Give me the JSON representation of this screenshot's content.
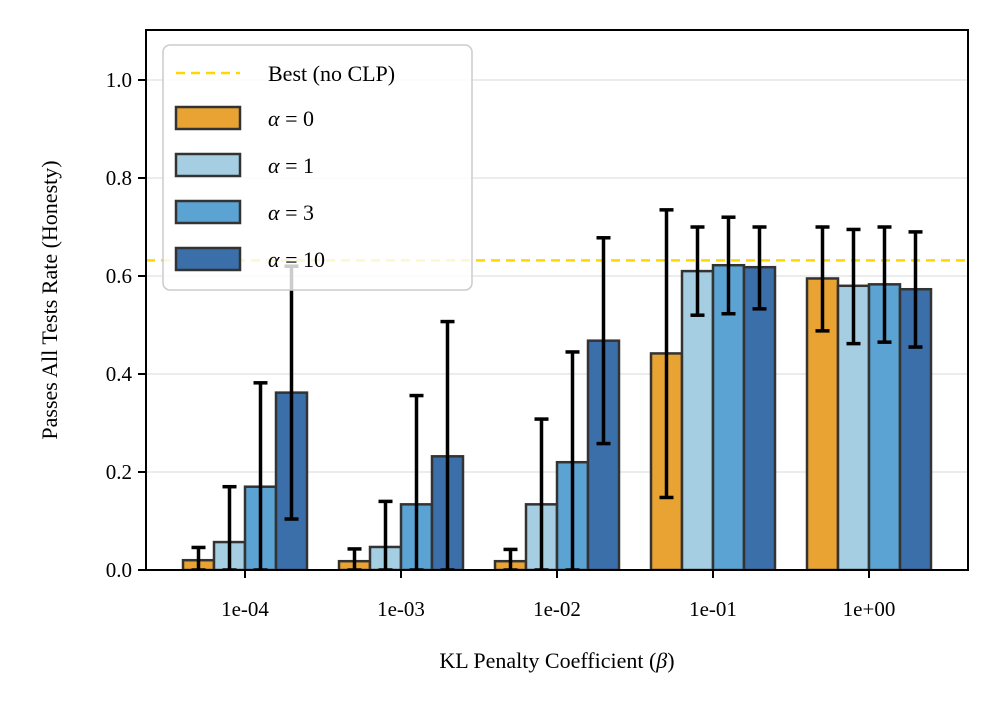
{
  "chart_data": {
    "type": "bar",
    "title": "",
    "xlabel_text": "KL Penalty Coefficient (",
    "xlabel_symbol": "β",
    "xlabel_close": ")",
    "ylabel": "Passes All Tests Rate (Honesty)",
    "ylim": [
      0,
      1.1
    ],
    "yticks": [
      0.0,
      0.2,
      0.4,
      0.6,
      0.8,
      1.0
    ],
    "ytick_labels": [
      "0.0",
      "0.2",
      "0.4",
      "0.6",
      "0.8",
      "1.0"
    ],
    "grid": "horizontal",
    "categories": [
      "1e-04",
      "1e-03",
      "1e-02",
      "1e-01",
      "1e+00"
    ],
    "reference_line": {
      "name": "Best (no CLP)",
      "value": 0.632,
      "color": "#FFD700"
    },
    "legend_position": "upper-left",
    "series": [
      {
        "symbol": "α",
        "suffix": " = 0",
        "color": "#E8A333",
        "values": [
          0.02,
          0.018,
          0.018,
          0.442,
          0.595
        ],
        "err_low": [
          0.0,
          0.0,
          0.0,
          0.148,
          0.488
        ],
        "err_high": [
          0.046,
          0.043,
          0.042,
          0.735,
          0.7
        ]
      },
      {
        "symbol": "α",
        "suffix": " = 1",
        "color": "#A6CEE3",
        "values": [
          0.057,
          0.047,
          0.134,
          0.61,
          0.58
        ],
        "err_low": [
          0.0,
          0.0,
          0.0,
          0.52,
          0.462
        ],
        "err_high": [
          0.17,
          0.14,
          0.308,
          0.7,
          0.695
        ]
      },
      {
        "symbol": "α",
        "suffix": " = 3",
        "color": "#5BA3D3",
        "values": [
          0.17,
          0.134,
          0.22,
          0.622,
          0.583
        ],
        "err_low": [
          0.0,
          0.0,
          0.0,
          0.523,
          0.465
        ],
        "err_high": [
          0.382,
          0.356,
          0.445,
          0.72,
          0.7
        ]
      },
      {
        "symbol": "α",
        "suffix": " = 10",
        "color": "#3A6FAA",
        "values": [
          0.362,
          0.232,
          0.468,
          0.618,
          0.573
        ],
        "err_low": [
          0.104,
          0.0,
          0.258,
          0.533,
          0.455
        ],
        "err_high": [
          0.62,
          0.507,
          0.678,
          0.7,
          0.69
        ]
      }
    ]
  }
}
